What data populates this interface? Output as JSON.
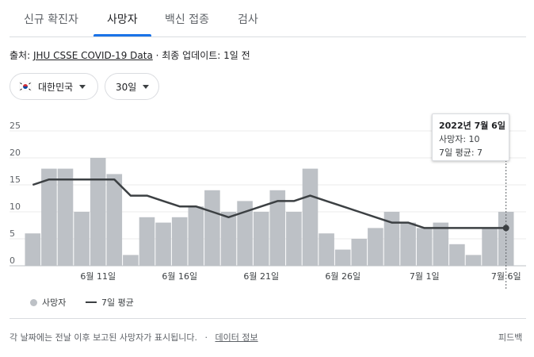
{
  "tabs": [
    {
      "label": "신규 확진자",
      "active": false
    },
    {
      "label": "사망자",
      "active": true
    },
    {
      "label": "백신 접종",
      "active": false
    },
    {
      "label": "검사",
      "active": false
    }
  ],
  "source": {
    "prefix": "출처: ",
    "link": "JHU CSSE COVID-19 Data",
    "update": " · 최종 업데이트: 1일 전"
  },
  "filters": {
    "region": {
      "label": "대한민국",
      "icon": "south-korea-flag-icon"
    },
    "period": {
      "label": "30일"
    }
  },
  "tooltip": {
    "date": "2022년 7월 6일",
    "deaths": "사망자: 10",
    "avg": "7일 평균: 7"
  },
  "legend": {
    "bars": "사망자",
    "line": "7일 평균"
  },
  "footer": {
    "note": "각 날짜에는 전날 이후 보고된 사망자가 표시됩니다.",
    "separator": "·",
    "data_info": "데이터 정보",
    "feedback": "피드백"
  },
  "colors": {
    "accent": "#1a73e8",
    "bar": "#bdc1c6",
    "line": "#3c4043"
  },
  "chart_data": {
    "type": "bar",
    "y_ticks": [
      "0",
      "5",
      "10",
      "15",
      "20",
      "25"
    ],
    "ylim": [
      0,
      25
    ],
    "x_tick_labels": [
      "6월 11일",
      "6월 16일",
      "6월 21일",
      "6월 26일",
      "7월 1일",
      "7월 6일"
    ],
    "x_tick_indices": [
      4,
      9,
      14,
      19,
      24,
      29
    ],
    "series": [
      {
        "name": "사망자",
        "type": "bar",
        "values": [
          6,
          18,
          18,
          10,
          20,
          17,
          2,
          9,
          8,
          9,
          11,
          14,
          10,
          12,
          10,
          14,
          10,
          18,
          6,
          3,
          5,
          7,
          10,
          8,
          7,
          8,
          4,
          2,
          7,
          10
        ]
      },
      {
        "name": "7일 평균",
        "type": "line",
        "values": [
          15,
          16,
          16,
          16,
          16,
          16,
          13,
          13,
          12,
          11,
          11,
          10,
          9,
          10,
          11,
          12,
          12,
          13,
          12,
          11,
          10,
          9,
          8,
          8,
          7,
          7,
          7,
          7,
          7,
          7
        ]
      }
    ],
    "highlight_index": 29
  }
}
